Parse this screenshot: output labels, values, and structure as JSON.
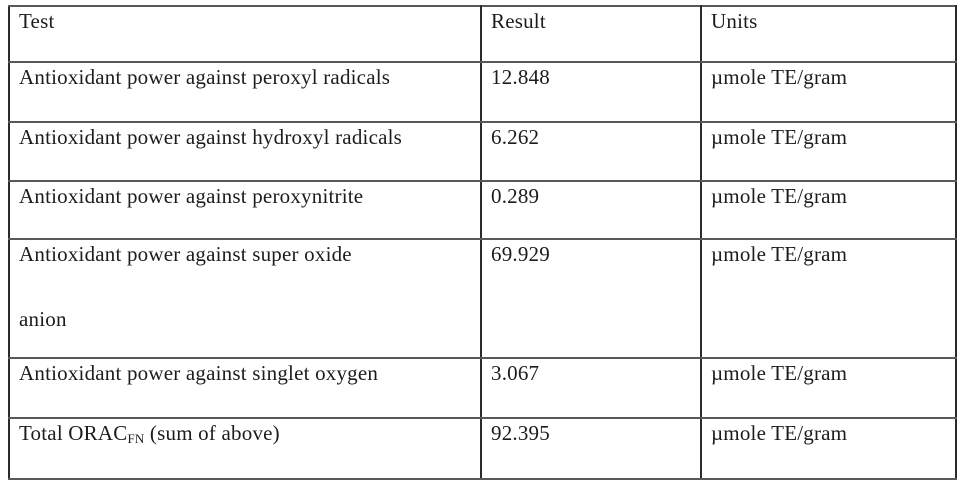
{
  "table": {
    "columns": {
      "test": "Test",
      "result": "Result",
      "units": "Units"
    },
    "rows": [
      {
        "test": "Antioxidant power against peroxyl radicals",
        "result": "12.848",
        "units": "µmole TE/gram"
      },
      {
        "test": "Antioxidant power against hydroxyl radicals",
        "result": "6.262",
        "units": "µmole TE/gram"
      },
      {
        "test": "Antioxidant power against peroxynitrite",
        "result": "0.289",
        "units": "µmole TE/gram"
      },
      {
        "test": "Antioxidant power against super oxide anion",
        "result": "69.929",
        "units": "µmole TE/gram"
      },
      {
        "test": "Antioxidant power against singlet oxygen",
        "result": "3.067",
        "units": "µmole TE/gram"
      },
      {
        "test_prefix": "Total ORAC",
        "test_sub": "FN",
        "test_suffix": " (sum of above)",
        "result": "92.395",
        "units": "µmole TE/gram"
      }
    ],
    "colors": {
      "horizontal_rule": "#595959",
      "vertical_rule": "#2b2b2b",
      "text": "#1c1c1c",
      "background": "#ffffff"
    }
  }
}
